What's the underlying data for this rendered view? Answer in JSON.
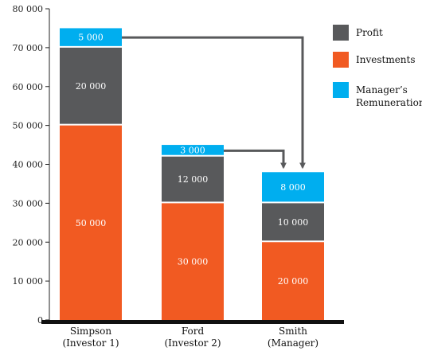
{
  "chart_data": {
    "type": "bar",
    "stacked": true,
    "categories": [
      [
        "Simpson",
        "(Investor  1)"
      ],
      [
        "Ford",
        "(Investor  2)"
      ],
      [
        "Smith",
        "(Manager)"
      ]
    ],
    "series": [
      {
        "name": "Investments",
        "color": "#f15a22",
        "values": [
          50000,
          30000,
          20000
        ],
        "labels": [
          "50 000",
          "30 000",
          "20 000"
        ]
      },
      {
        "name": "Profit",
        "color": "#58595b",
        "values": [
          20000,
          12000,
          10000
        ],
        "labels": [
          "20 000",
          "12 000",
          "10 000"
        ]
      },
      {
        "name": "Manager's Remuneration",
        "color": "#00aeef",
        "values": [
          5000,
          3000,
          8000
        ],
        "labels": [
          "5 000",
          "3 000",
          "8 000"
        ]
      }
    ],
    "legend": [
      {
        "name": "Profit",
        "lines": [
          "Profit"
        ],
        "color": "#58595b"
      },
      {
        "name": "Investments",
        "lines": [
          "Investments"
        ],
        "color": "#f15a22"
      },
      {
        "name": "Manager's Remuneration",
        "lines": [
          "Manager’s",
          "Remuneration"
        ],
        "color": "#00aeef"
      }
    ],
    "yticks": [
      0,
      10000,
      20000,
      30000,
      40000,
      50000,
      60000,
      70000,
      80000
    ],
    "ytick_labels": [
      "0",
      "10 000",
      "20 000",
      "30 000",
      "40 000",
      "50 000",
      "60 000",
      "70 000",
      "80 000"
    ],
    "ylim": [
      0,
      80000
    ],
    "legend_position": "top-right",
    "arrows": [
      {
        "from": "Simpson",
        "to": "Smith"
      },
      {
        "from": "Ford",
        "to": "Smith"
      }
    ],
    "grid": false
  }
}
